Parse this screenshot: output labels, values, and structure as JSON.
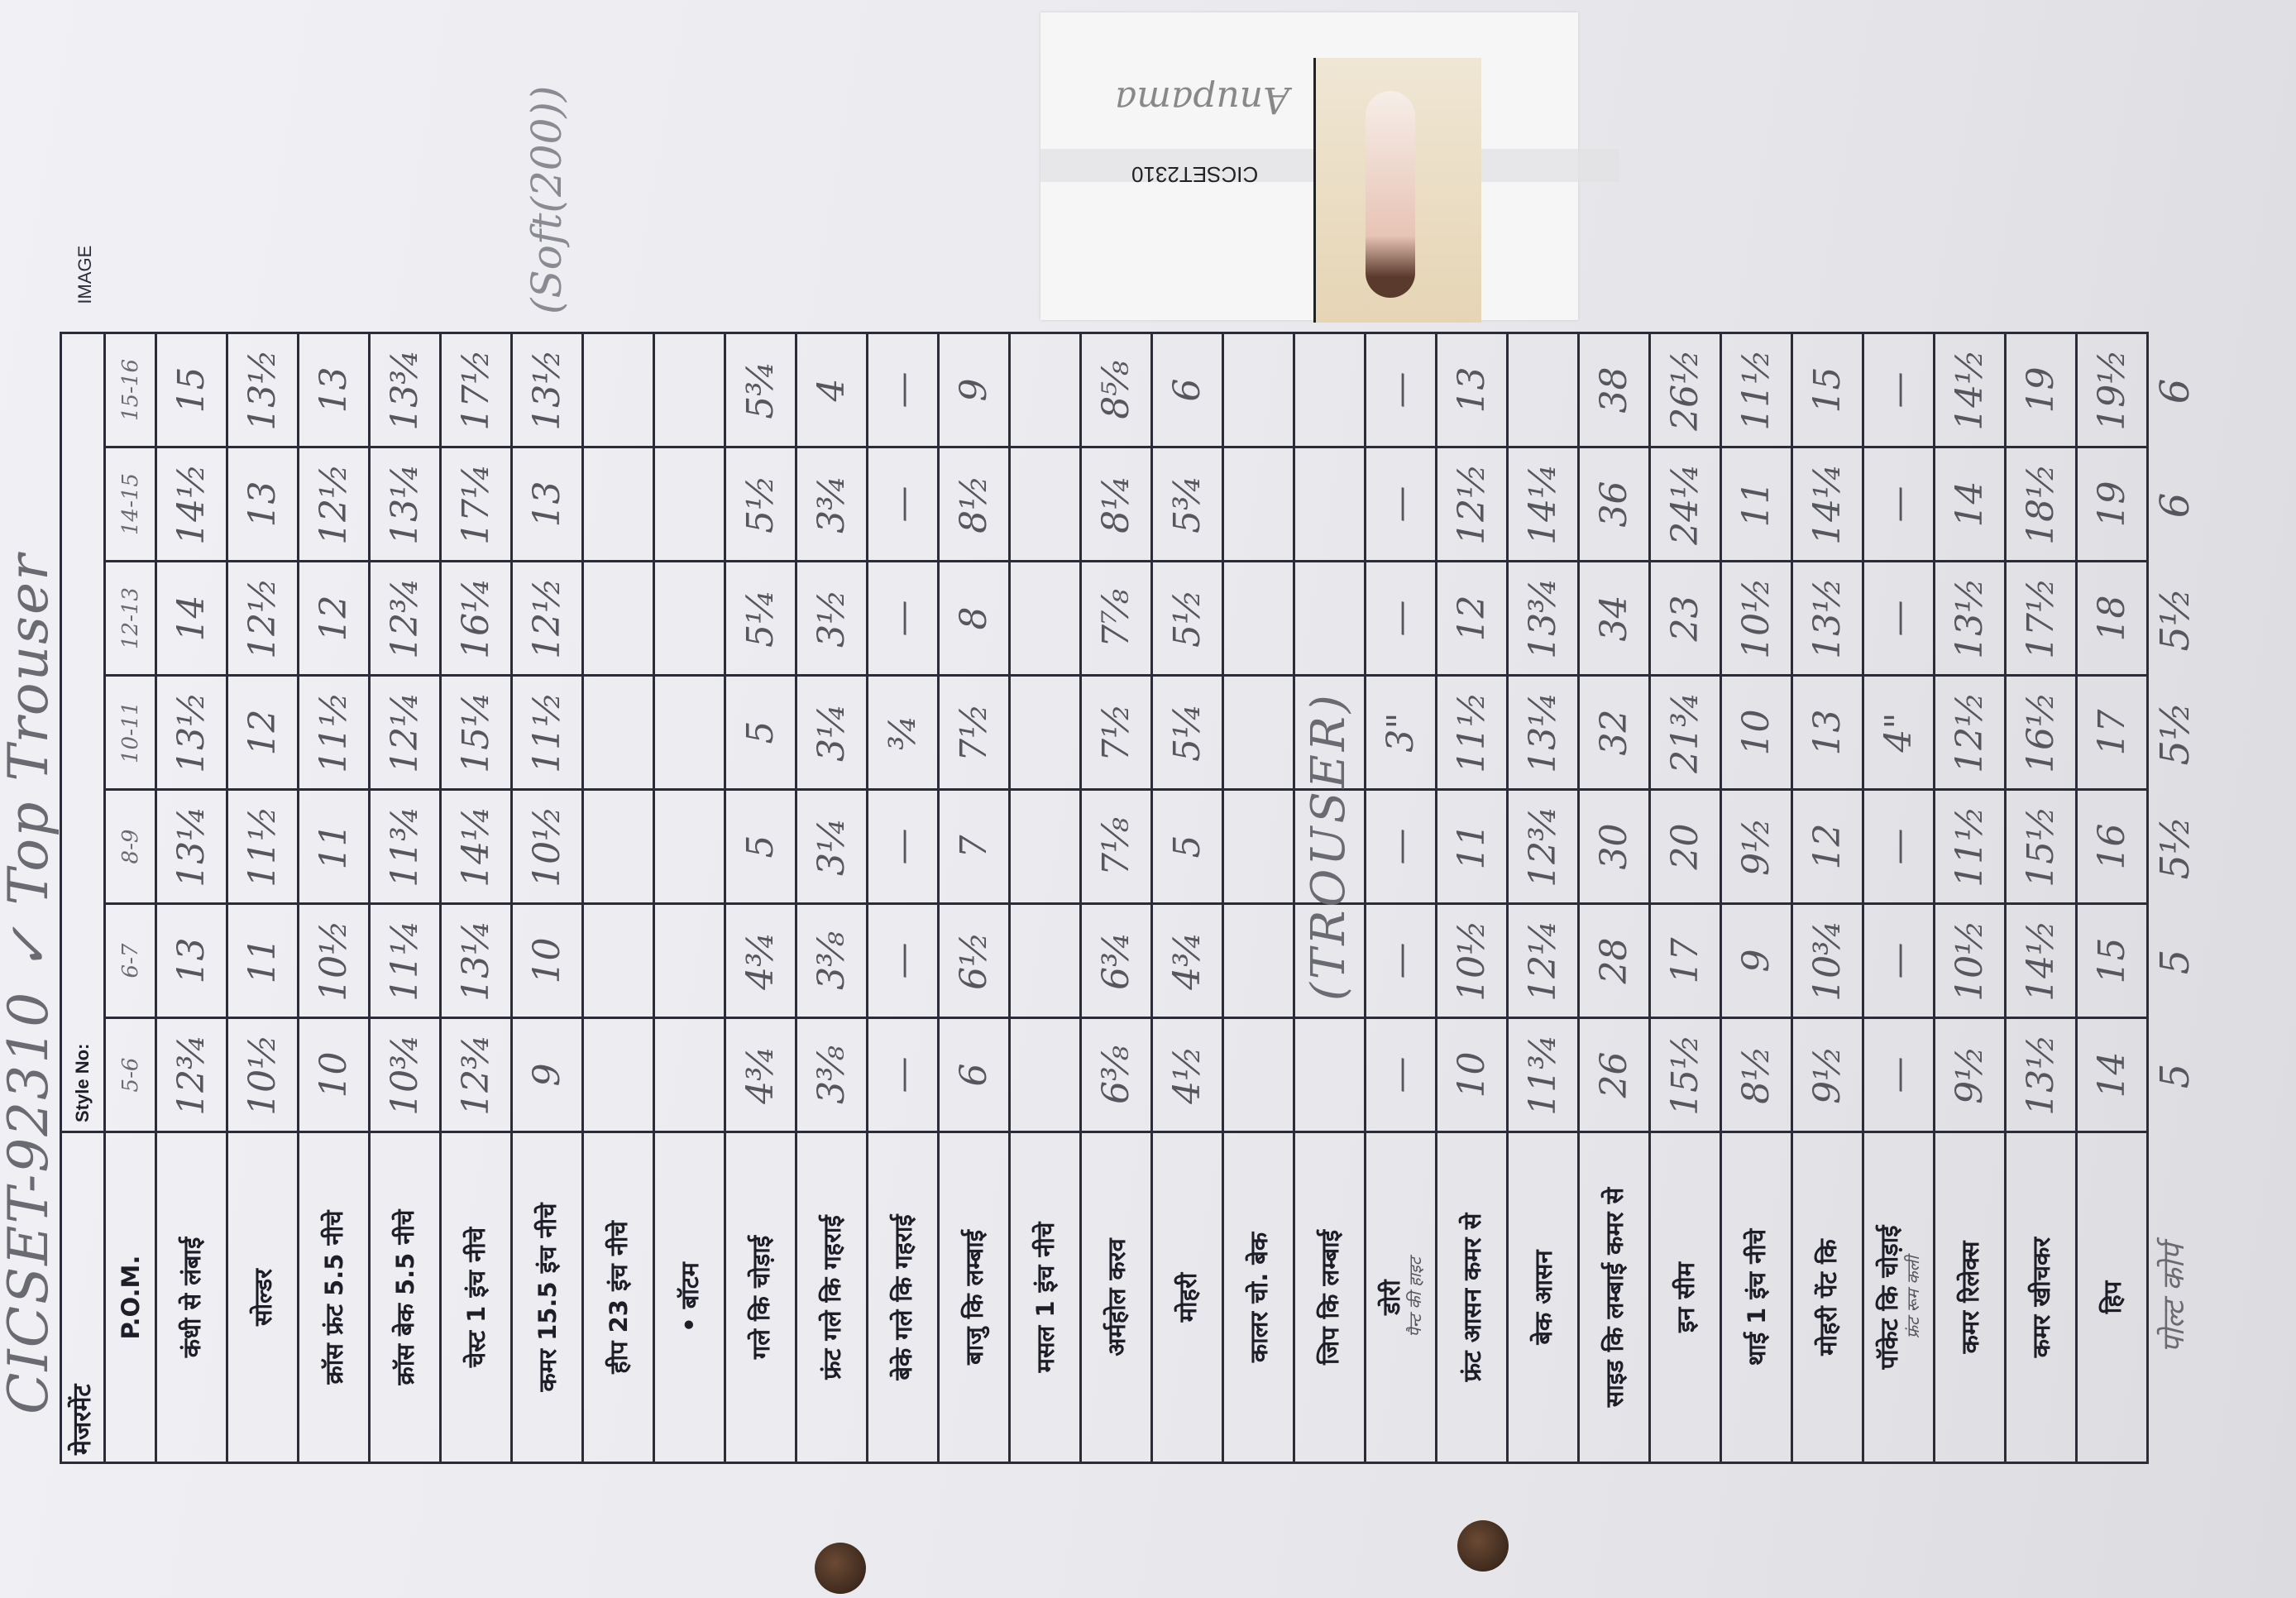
{
  "sheet": {
    "title_handwritten": "CICSET-92310 ✓ Top Trouser",
    "header_label": "मेजरमेंट",
    "style_no_label": "Style No:",
    "pom_label": "P.O.M.",
    "image_label": "IMAGE",
    "sizes": [
      "5-6",
      "6-7",
      "8-9",
      "10-11",
      "12-13",
      "14-15",
      "15-16"
    ],
    "rows": [
      {
        "label": "कंधी से लंबाई",
        "values": [
          "12¾",
          "13",
          "13¼",
          "13½",
          "14",
          "14½",
          "15"
        ]
      },
      {
        "label": "सोल्डर",
        "values": [
          "10½",
          "11",
          "11½",
          "12",
          "12½",
          "13",
          "13½"
        ]
      },
      {
        "label": "क्रॉस फ्रंट 5.5 नीचे",
        "values": [
          "10",
          "10½",
          "11",
          "11½",
          "12",
          "12½",
          "13"
        ]
      },
      {
        "label": "क्रॉस बेक 5.5 नीचे",
        "values": [
          "10¾",
          "11¼",
          "11¾",
          "12¼",
          "12¾",
          "13¼",
          "13¾"
        ]
      },
      {
        "label": "चेस्ट 1 इंच नीचे",
        "values": [
          "12¾",
          "13¼",
          "14¼",
          "15¼",
          "16¼",
          "17¼",
          "17½"
        ]
      },
      {
        "label": "कमर 15.5 इंच नीचे",
        "values": [
          "9",
          "10",
          "10½",
          "11½",
          "12½",
          "13",
          "13½"
        ]
      },
      {
        "label": "हीप 23 इंच नीचे",
        "values": [
          "",
          "",
          "",
          "",
          "",
          "",
          ""
        ]
      },
      {
        "label": "• बॉटम",
        "values": [
          "",
          "",
          "",
          "",
          "",
          "",
          ""
        ]
      },
      {
        "label": "गले कि चोड़ाई",
        "values": [
          "4¾",
          "4¾",
          "5",
          "5",
          "5¼",
          "5½",
          "5¾"
        ]
      },
      {
        "label": "फ्रंट गले कि गहराई",
        "values": [
          "3⅜",
          "3⅜",
          "3¼",
          "3¼",
          "3½",
          "3¾",
          "4"
        ]
      },
      {
        "label": "बेके गले कि गहराई",
        "values": [
          "—",
          "—",
          "—",
          "¾",
          "—",
          "—",
          "—"
        ]
      },
      {
        "label": "बाजु कि लम्बाई",
        "values": [
          "6",
          "6½",
          "7",
          "7½",
          "8",
          "8½",
          "9"
        ]
      },
      {
        "label": "मसल 1 इंच नीचे",
        "values": [
          "",
          "",
          "",
          "",
          "",
          "",
          ""
        ]
      },
      {
        "label": "अर्महोल करव",
        "values": [
          "6⅜",
          "6¾",
          "7⅛",
          "7½",
          "7⅞",
          "8¼",
          "8⅝"
        ]
      },
      {
        "label": "मोहरी",
        "values": [
          "4½",
          "4¾",
          "5",
          "5¼",
          "5½",
          "5¾",
          "6"
        ]
      },
      {
        "label": "कालर चो. बेक",
        "values": [
          "",
          "",
          "",
          "",
          "",
          "",
          ""
        ]
      },
      {
        "label": "जिप कि लम्बाई",
        "values": [
          "",
          "",
          "",
          "",
          "",
          "",
          ""
        ]
      },
      {
        "label": "डोरी",
        "note": "पैन्ट की हाइट",
        "values": [
          "—",
          "—",
          "—",
          "3\"",
          "—",
          "—",
          "—"
        ]
      },
      {
        "label": "फ्रंट आसन कमर से",
        "values": [
          "10",
          "10½",
          "11",
          "11½",
          "12",
          "12½",
          "13"
        ]
      },
      {
        "label": "बेक आसन",
        "values": [
          "11¾",
          "12¼",
          "12¾",
          "13¼",
          "13¾",
          "14¼",
          ""
        ]
      },
      {
        "label": "साइड कि लम्बाई कमर से",
        "values": [
          "26",
          "28",
          "30",
          "32",
          "34",
          "36",
          "38"
        ]
      },
      {
        "label": "इन सीम",
        "values": [
          "15½",
          "17",
          "20",
          "21¾",
          "23",
          "24¼",
          "26½"
        ]
      },
      {
        "label": "थाई 1 इंच नीचे",
        "values": [
          "8½",
          "9",
          "9½",
          "10",
          "10½",
          "11",
          "11½"
        ]
      },
      {
        "label": "मोहरी पेंट कि",
        "values": [
          "9½",
          "10¾",
          "12",
          "13",
          "13½",
          "14¼",
          "15"
        ]
      },
      {
        "label": "पॉकेट कि चोड़ाई",
        "note": "फ्रंट रूम कली",
        "values": [
          "—",
          "—",
          "—",
          "4\"",
          "—",
          "—",
          "—"
        ]
      },
      {
        "label": "कमर रिलेक्स",
        "values": [
          "9½",
          "10½",
          "11½",
          "12½",
          "13½",
          "14",
          "14½"
        ]
      },
      {
        "label": "कमर खीचकर",
        "values": [
          "13½",
          "14½",
          "15½",
          "16½",
          "17½",
          "18½",
          "19"
        ]
      },
      {
        "label": "हिप",
        "values": [
          "14",
          "15",
          "16",
          "17",
          "18",
          "19",
          "19½"
        ]
      }
    ],
    "annotation_soft": "(Soft(200))",
    "annotation_trouser": "(TROUSER)",
    "extra_row": {
      "label": "पोल्ट कोर्प",
      "values": [
        "5",
        "5",
        "5½",
        "5½",
        "5½",
        "6",
        "6"
      ]
    }
  },
  "image_card": {
    "code": "CICSET2310",
    "signature": "Anupama"
  }
}
